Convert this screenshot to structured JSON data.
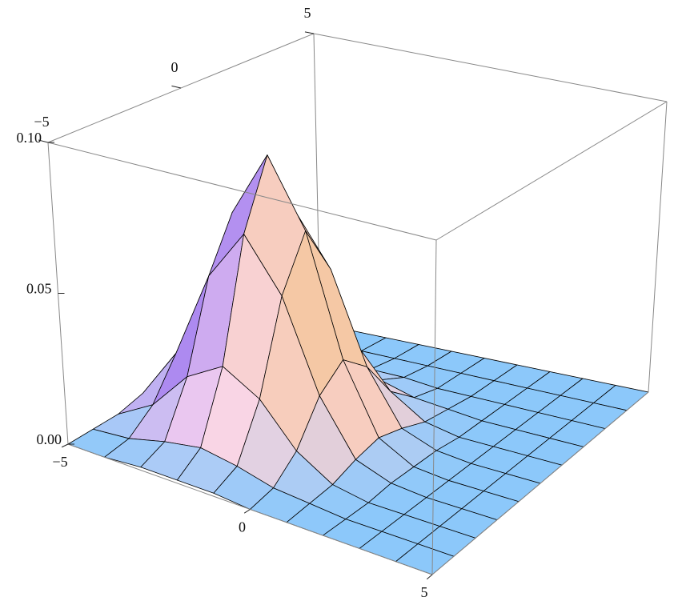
{
  "chart_data": {
    "type": "surface",
    "x": [
      -5,
      -4,
      -3,
      -2,
      -1,
      0,
      1,
      2,
      3,
      4,
      5
    ],
    "y": [
      -5,
      -4,
      -3,
      -2,
      -1,
      0,
      1,
      2,
      3,
      4,
      5
    ],
    "z": [
      [
        0,
        0,
        0.001,
        0.001,
        0.001,
        0,
        0,
        0,
        0,
        0,
        0
      ],
      [
        0.001,
        0.002,
        0.005,
        0.007,
        0.005,
        0.002,
        0.001,
        0,
        0,
        0,
        0
      ],
      [
        0.002,
        0.009,
        0.022,
        0.029,
        0.022,
        0.009,
        0.002,
        0,
        0,
        0,
        0
      ],
      [
        0.005,
        0.022,
        0.051,
        0.068,
        0.051,
        0.022,
        0.005,
        0.001,
        0,
        0,
        0
      ],
      [
        0.007,
        0.029,
        0.068,
        0.09,
        0.068,
        0.029,
        0.007,
        0.001,
        0,
        0,
        0
      ],
      [
        0.005,
        0.022,
        0.051,
        0.068,
        0.051,
        0.022,
        0.005,
        0.001,
        0,
        0,
        0
      ],
      [
        0.002,
        0.009,
        0.022,
        0.029,
        0.022,
        0.009,
        0.002,
        0,
        0,
        0,
        0
      ],
      [
        0.001,
        0.002,
        0.005,
        0.007,
        0.005,
        0.002,
        0.001,
        0,
        0,
        0,
        0
      ],
      [
        0,
        0,
        0.001,
        0.001,
        0.001,
        0,
        0,
        0,
        0,
        0,
        0
      ],
      [
        0,
        0,
        0,
        0,
        0,
        0,
        0,
        0,
        0,
        0,
        0
      ],
      [
        0,
        0,
        0,
        0,
        0,
        0,
        0,
        0,
        0,
        0,
        0
      ]
    ],
    "xlim": [
      -5,
      5
    ],
    "ylim": [
      -5,
      5
    ],
    "zlim": [
      0,
      0.1
    ],
    "xticks": [
      {
        "value": -5,
        "label": "−5"
      },
      0,
      5
    ],
    "yticks": [
      {
        "value": -5,
        "label": "−5"
      },
      0,
      5
    ],
    "zticks": [
      {
        "value": 0,
        "label": "0.00"
      },
      {
        "value": 0.05,
        "label": "0.05"
      },
      {
        "value": 0.1,
        "label": "0.10"
      }
    ]
  }
}
